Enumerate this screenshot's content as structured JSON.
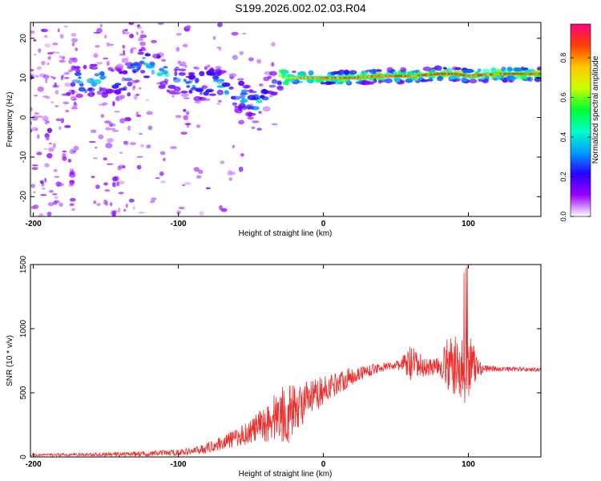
{
  "title": "S199.2026.002.02.03.R04",
  "chart_data": [
    {
      "type": "heatmap",
      "xlabel": "Height of straight line (km)",
      "ylabel": "Frequency (Hz)",
      "xlim": [
        -202,
        150
      ],
      "ylim": [
        -25,
        24
      ],
      "xticks": [
        -200,
        -100,
        0,
        100
      ],
      "xtick_labels": [
        "-200",
        "-100",
        "0",
        "100"
      ],
      "yticks": [
        -20,
        -10,
        0,
        10,
        20
      ],
      "ytick_labels": [
        "-20",
        "-10",
        "0",
        "10",
        "20"
      ],
      "colorbar": {
        "label": "Normalized spectral amplitude",
        "range": [
          0.0,
          0.97
        ],
        "ticks": [
          0.0,
          0.2,
          0.4,
          0.6,
          0.8
        ],
        "tick_labels": [
          "0.0",
          "0.2",
          "0.4",
          "0.6",
          "0.8"
        ],
        "colormap": [
          "#ffffff",
          "#9a00ff",
          "#2800ff",
          "#00a0ff",
          "#00ffc8",
          "#00ff30",
          "#c8ff00",
          "#ffc800",
          "#ff4000",
          "#ff0080"
        ]
      },
      "ridge": {
        "x": [
          -170,
          -160,
          -150,
          -140,
          -125,
          -115,
          -105,
          -95,
          -85,
          -75,
          -65,
          -55,
          -45,
          -40,
          -35,
          -30,
          -25,
          -15,
          0,
          20,
          40,
          60,
          80,
          90,
          100,
          120,
          150
        ],
        "y": [
          9,
          9.5,
          9.5,
          9,
          14,
          12,
          10,
          9,
          8,
          9,
          7,
          5,
          3,
          6,
          8,
          11,
          10,
          10,
          10,
          10,
          10.5,
          10.5,
          11,
          11,
          10.5,
          11,
          11
        ],
        "amplitude": [
          0.4,
          0.45,
          0.4,
          0.35,
          0.4,
          0.45,
          0.4,
          0.35,
          0.4,
          0.45,
          0.4,
          0.45,
          0.5,
          0.3,
          0.3,
          0.55,
          0.8,
          0.85,
          0.9,
          0.92,
          0.93,
          0.93,
          0.94,
          0.95,
          0.93,
          0.93,
          0.92
        ]
      }
    },
    {
      "type": "line",
      "xlabel": "Height of straight line (km)",
      "ylabel": "SNR (10 * v/v)",
      "xlim": [
        -202,
        150
      ],
      "ylim": [
        0,
        1500
      ],
      "xticks": [
        -200,
        -100,
        0,
        100
      ],
      "xtick_labels": [
        "-200",
        "-100",
        "0",
        "100"
      ],
      "yticks": [
        0,
        500,
        1000,
        1500
      ],
      "ytick_labels": [
        "0",
        "500",
        "1000",
        "1500"
      ],
      "line_color": "#ee2c2c",
      "envelope": {
        "x": [
          -202,
          -150,
          -120,
          -100,
          -90,
          -80,
          -70,
          -60,
          -50,
          -40,
          -30,
          -25,
          -20,
          -10,
          0,
          10,
          20,
          30,
          40,
          50,
          60,
          70,
          80,
          85,
          90,
          95,
          100,
          105,
          110,
          120,
          130,
          150
        ],
        "y": [
          15,
          20,
          25,
          35,
          45,
          70,
          110,
          150,
          200,
          260,
          340,
          330,
          380,
          440,
          520,
          580,
          630,
          670,
          700,
          715,
          720,
          700,
          710,
          720,
          700,
          690,
          700,
          705,
          690,
          685,
          685,
          680
        ],
        "noise": [
          8,
          15,
          20,
          25,
          30,
          40,
          55,
          70,
          100,
          150,
          220,
          250,
          180,
          150,
          110,
          90,
          70,
          50,
          35,
          25,
          150,
          80,
          60,
          200,
          250,
          260,
          300,
          150,
          30,
          20,
          18,
          15
        ]
      }
    }
  ]
}
